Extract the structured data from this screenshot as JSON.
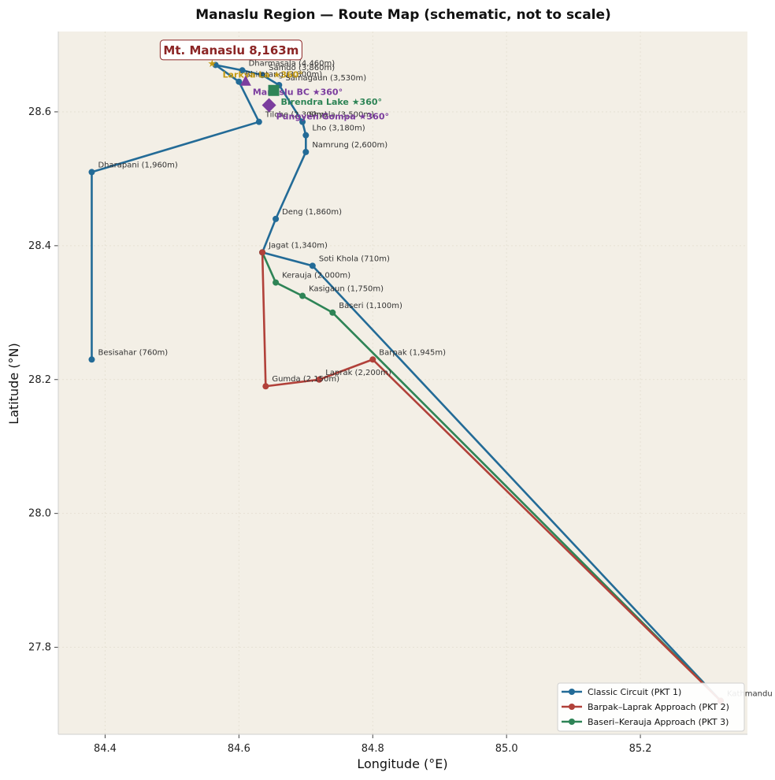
{
  "chart_data": {
    "type": "line",
    "title": "Manaslu Region — Route Map (schematic, not to scale)",
    "xlabel": "Longitude (°E)",
    "ylabel": "Latitude (°N)",
    "xlim": [
      84.33,
      85.36
    ],
    "ylim": [
      27.67,
      28.72
    ],
    "xticks": [
      "84.4",
      "84.6",
      "84.8",
      "85.0",
      "85.2"
    ],
    "xtick_values": [
      84.4,
      84.6,
      84.8,
      85.0,
      85.2
    ],
    "yticks": [
      "27.8",
      "28.0",
      "28.2",
      "28.4",
      "28.6"
    ],
    "ytick_values": [
      27.8,
      28.0,
      28.2,
      28.4,
      28.6
    ],
    "grid": true,
    "legend_position": "bottom-right",
    "colors": {
      "background": "#f3efe6",
      "pkt1": "#236b97",
      "pkt2": "#b1413a",
      "pkt3": "#2e8456",
      "summit": "#8b2525",
      "lake": "#2e8456",
      "gompa": "#7b3d9e",
      "bc": "#7b3d9e",
      "viewpoint": "#c39a12"
    },
    "series": [
      {
        "name": "Classic Circuit (PKT 1)",
        "color": "#236b97",
        "points": [
          {
            "x": 85.32,
            "y": 27.72,
            "label": "Kathmandu"
          },
          {
            "x": 84.71,
            "y": 28.37,
            "label": "Soti Khola (710m)"
          },
          {
            "x": 84.635,
            "y": 28.39,
            "label": "Jagat (1,340m)"
          },
          {
            "x": 84.655,
            "y": 28.44,
            "label": "Deng (1,860m)"
          },
          {
            "x": 84.7,
            "y": 28.54,
            "label": "Namrung (2,600m)"
          },
          {
            "x": 84.7,
            "y": 28.565,
            "label": "Lho (3,180m)"
          },
          {
            "x": 84.695,
            "y": 28.585,
            "label": "Shyala (3,500m)"
          },
          {
            "x": 84.66,
            "y": 28.64,
            "label": "Samagaun (3,530m)"
          },
          {
            "x": 84.635,
            "y": 28.655,
            "label": "Samdo (3,860m)"
          },
          {
            "x": 84.605,
            "y": 28.662,
            "label": "Dharmasala (4,460m)"
          },
          {
            "x": 84.565,
            "y": 28.67,
            "label": ""
          },
          {
            "x": 84.6,
            "y": 28.645,
            "label": "Bhimtang (3,800m)"
          },
          {
            "x": 84.63,
            "y": 28.585,
            "label": "Tilche (2,300m)"
          },
          {
            "x": 84.38,
            "y": 28.51,
            "label": "Dharapani (1,960m)"
          },
          {
            "x": 84.38,
            "y": 28.23,
            "label": "Besisahar (760m)"
          }
        ]
      },
      {
        "name": "Barpak–Laprak Approach (PKT 2)",
        "color": "#b1413a",
        "points": [
          {
            "x": 85.32,
            "y": 27.72,
            "label": ""
          },
          {
            "x": 84.8,
            "y": 28.23,
            "label": "Barpak (1,945m)"
          },
          {
            "x": 84.72,
            "y": 28.2,
            "label": "Laprak (2,200m)"
          },
          {
            "x": 84.64,
            "y": 28.19,
            "label": "Gumda (2,150m)"
          },
          {
            "x": 84.635,
            "y": 28.39,
            "label": ""
          }
        ]
      },
      {
        "name": "Baseri–Kerauja Approach (PKT 3)",
        "color": "#2e8456",
        "points": [
          {
            "x": 85.32,
            "y": 27.72,
            "label": ""
          },
          {
            "x": 84.74,
            "y": 28.3,
            "label": "Baseri (1,100m)"
          },
          {
            "x": 84.695,
            "y": 28.325,
            "label": "Kasigaun (1,750m)"
          },
          {
            "x": 84.655,
            "y": 28.345,
            "label": "Kerauja (2,000m)"
          },
          {
            "x": 84.635,
            "y": 28.39,
            "label": ""
          }
        ]
      }
    ],
    "points_of_interest": [
      {
        "type": "summit",
        "x": 84.56,
        "y": 28.673,
        "label": "Mt. Manaslu 8,163m",
        "color": "#8b2525"
      },
      {
        "type": "viewpoint",
        "x": 84.605,
        "y": 28.656,
        "label": "Larkya La  ★360°",
        "color": "#c39a12"
      },
      {
        "type": "bc",
        "x": 84.61,
        "y": 28.645,
        "label": "Manaslu BC  ★360°",
        "color": "#7b3d9e"
      },
      {
        "type": "lake",
        "x": 84.652,
        "y": 28.632,
        "label": "Birendra Lake  ★360°",
        "color": "#2e8456"
      },
      {
        "type": "gompa",
        "x": 84.645,
        "y": 28.61,
        "label": "Pungyen Gompa  ★360°",
        "color": "#7b3d9e"
      }
    ]
  }
}
